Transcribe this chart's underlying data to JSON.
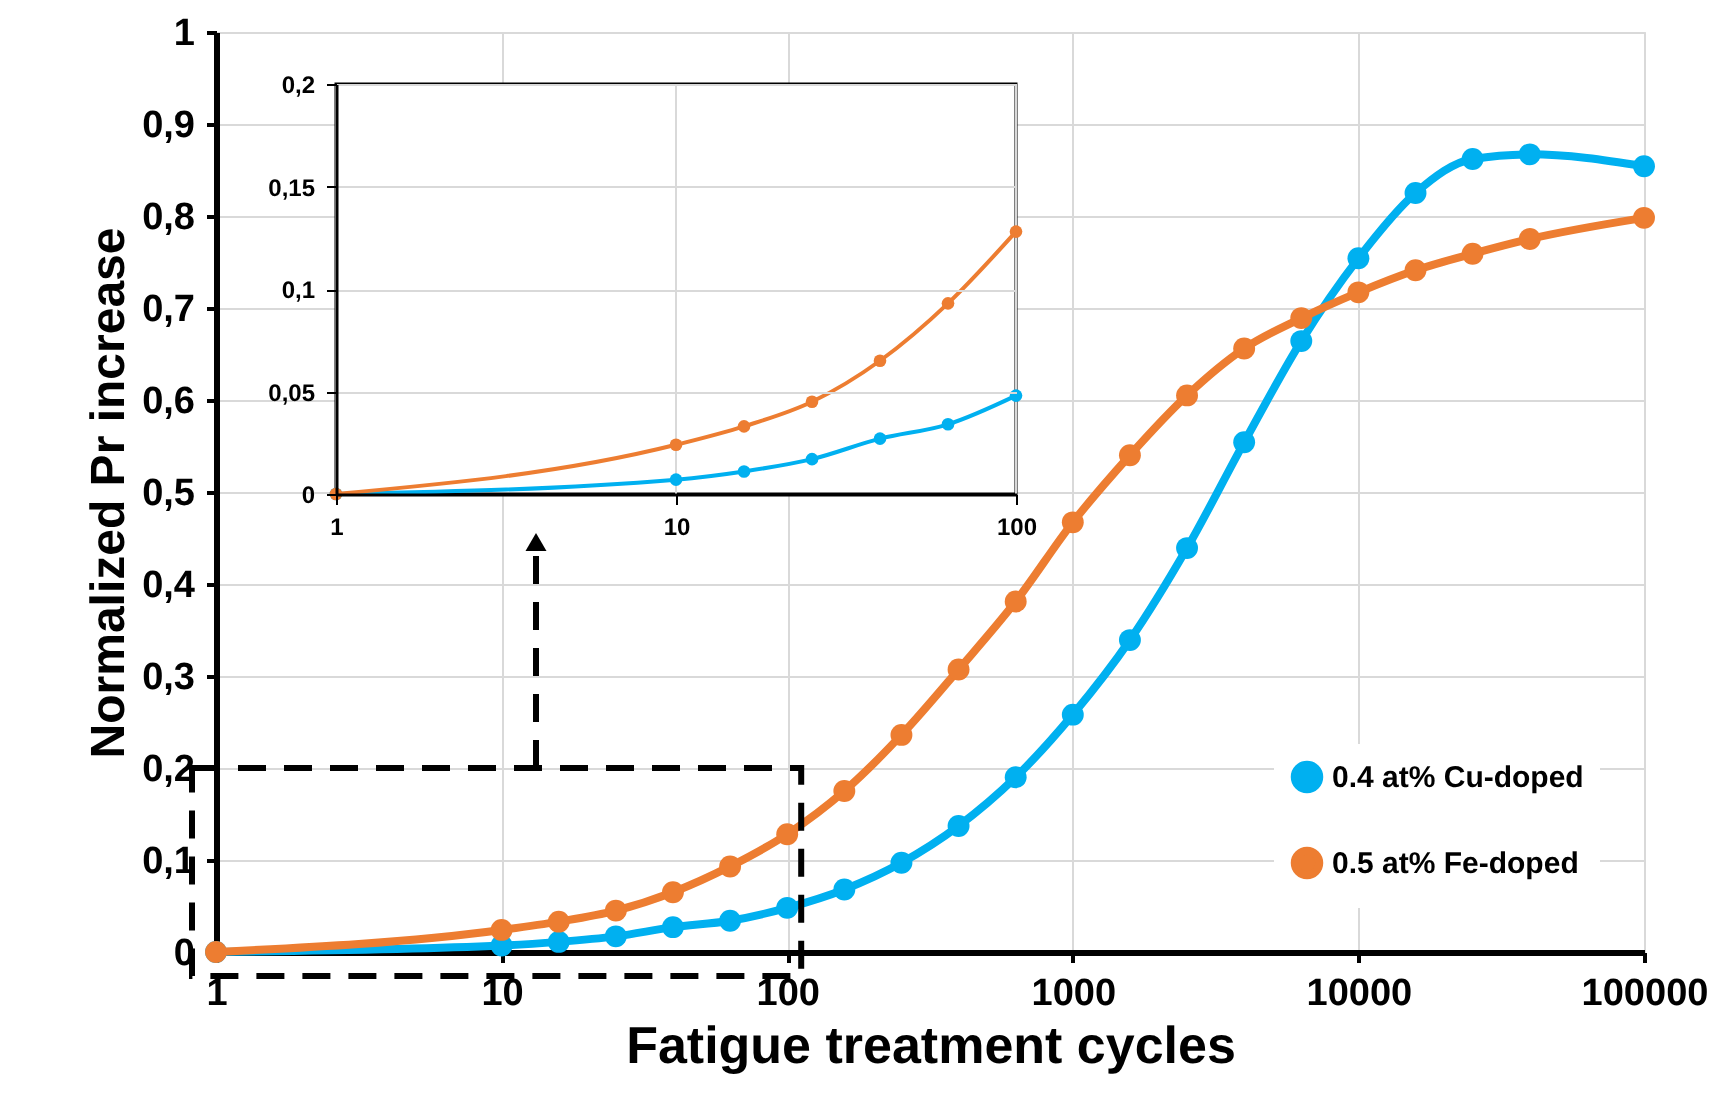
{
  "chart_data": [
    {
      "type": "line",
      "xlabel": "Fatigue treatment cycles",
      "ylabel": "Normalized Pr increase",
      "x": [
        1,
        10,
        15.85,
        25.12,
        39.81,
        63.1,
        100,
        158.5,
        251.2,
        398.1,
        631,
        1000,
        1585,
        2512,
        3981,
        6310,
        10000,
        15849,
        25119,
        39811,
        100000
      ],
      "series": [
        {
          "name": "0.4 at% Cu-doped",
          "color": "#00b0f0",
          "values": [
            0,
            0.007,
            0.011,
            0.017,
            0.027,
            0.034,
            0.048,
            0.068,
            0.097,
            0.137,
            0.19,
            0.258,
            0.339,
            0.439,
            0.554,
            0.664,
            0.754,
            0.825,
            0.862,
            0.867,
            0.854
          ]
        },
        {
          "name": "0.5 at% Fe-doped",
          "color": "#ed7d31",
          "values": [
            0,
            0.024,
            0.033,
            0.045,
            0.065,
            0.093,
            0.128,
            0.175,
            0.236,
            0.307,
            0.381,
            0.467,
            0.54,
            0.605,
            0.656,
            0.689,
            0.717,
            0.741,
            0.759,
            0.775,
            0.798
          ]
        }
      ],
      "xlim": [
        1,
        100000
      ],
      "ylim": [
        0,
        1
      ],
      "xticks": [
        1,
        10,
        100,
        1000,
        10000,
        100000
      ],
      "yticks": [
        0,
        {
          "value": 0.1,
          "label": "0,1"
        },
        {
          "value": 0.2,
          "label": "0,2"
        },
        {
          "value": 0.3,
          "label": "0,3"
        },
        {
          "value": 0.4,
          "label": "0,4"
        },
        {
          "value": 0.5,
          "label": "0,5"
        },
        {
          "value": 0.6,
          "label": "0,6"
        },
        {
          "value": 0.7,
          "label": "0,7"
        },
        {
          "value": 0.8,
          "label": "0,8"
        },
        {
          "value": 0.9,
          "label": "0,9"
        },
        1
      ],
      "log": "x",
      "grid": true,
      "legend": "bottom right",
      "marker": "circle"
    },
    {
      "type": "line",
      "x": [
        1,
        10,
        15.85,
        25.12,
        39.81,
        63.1,
        100
      ],
      "series": [
        {
          "color": "#00b0f0",
          "values": [
            0,
            0.007,
            0.011,
            0.017,
            0.027,
            0.034,
            0.048
          ]
        },
        {
          "color": "#ed7d31",
          "values": [
            0,
            0.024,
            0.033,
            0.045,
            0.065,
            0.093,
            0.128
          ]
        }
      ],
      "xlim": [
        1,
        100
      ],
      "ylim": [
        0,
        0.2
      ],
      "xticks": [
        1,
        10,
        100
      ],
      "yticks": [
        0,
        {
          "value": 0.05,
          "label": "0,05"
        },
        {
          "value": 0.1,
          "label": "0,1"
        },
        {
          "value": 0.15,
          "label": "0,15"
        },
        {
          "value": 0.2,
          "label": "0,2"
        }
      ],
      "log": "x",
      "grid": true,
      "marker": "circle"
    }
  ]
}
